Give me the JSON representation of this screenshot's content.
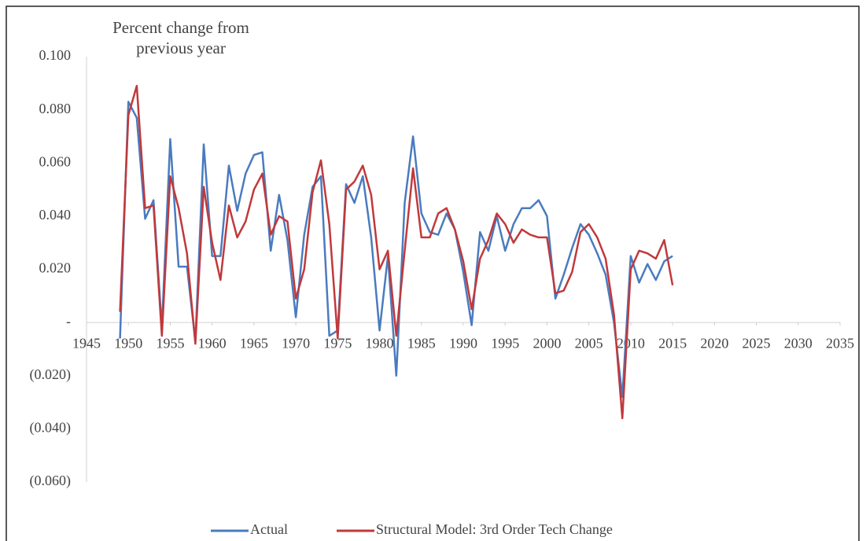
{
  "chart_data": {
    "type": "line",
    "ylabel": "Percent change from previous year",
    "x": [
      1949,
      1950,
      1951,
      1952,
      1953,
      1954,
      1955,
      1956,
      1957,
      1958,
      1959,
      1960,
      1961,
      1962,
      1963,
      1964,
      1965,
      1966,
      1967,
      1968,
      1969,
      1970,
      1971,
      1972,
      1973,
      1974,
      1975,
      1976,
      1977,
      1978,
      1979,
      1980,
      1981,
      1982,
      1983,
      1984,
      1985,
      1986,
      1987,
      1988,
      1989,
      1990,
      1991,
      1992,
      1993,
      1994,
      1995,
      1996,
      1997,
      1998,
      1999,
      2000,
      2001,
      2002,
      2003,
      2004,
      2005,
      2006,
      2007,
      2008,
      2009,
      2010,
      2011,
      2012,
      2013,
      2014,
      2015
    ],
    "series": [
      {
        "name": "Actual",
        "color": "#4a7bbf",
        "values": [
          -0.006,
          0.083,
          0.077,
          0.039,
          0.046,
          -0.002,
          0.069,
          0.021,
          0.021,
          -0.007,
          0.067,
          0.025,
          0.025,
          0.059,
          0.042,
          0.056,
          0.063,
          0.064,
          0.027,
          0.048,
          0.031,
          0.002,
          0.033,
          0.051,
          0.055,
          -0.005,
          -0.003,
          0.052,
          0.045,
          0.055,
          0.032,
          -0.003,
          0.025,
          -0.02,
          0.045,
          0.07,
          0.041,
          0.034,
          0.033,
          0.041,
          0.035,
          0.019,
          -0.001,
          0.034,
          0.027,
          0.04,
          0.027,
          0.037,
          0.043,
          0.043,
          0.046,
          0.04,
          0.009,
          0.018,
          0.028,
          0.037,
          0.033,
          0.026,
          0.018,
          0.0,
          -0.028,
          0.025,
          0.015,
          0.022,
          0.016,
          0.023,
          0.025
        ]
      },
      {
        "name": "Structural Model: 3rd Order Tech Change",
        "color": "#c0393b",
        "values": [
          0.004,
          0.078,
          0.089,
          0.043,
          0.044,
          -0.005,
          0.055,
          0.043,
          0.026,
          -0.008,
          0.051,
          0.03,
          0.016,
          0.044,
          0.032,
          0.038,
          0.05,
          0.056,
          0.033,
          0.04,
          0.038,
          0.009,
          0.02,
          0.049,
          0.061,
          0.037,
          -0.006,
          0.05,
          0.053,
          0.059,
          0.048,
          0.02,
          0.027,
          -0.005,
          0.027,
          0.058,
          0.032,
          0.032,
          0.041,
          0.043,
          0.035,
          0.023,
          0.005,
          0.024,
          0.031,
          0.041,
          0.037,
          0.03,
          0.035,
          0.033,
          0.032,
          0.032,
          0.011,
          0.012,
          0.019,
          0.034,
          0.037,
          0.032,
          0.024,
          0.003,
          -0.036,
          0.02,
          0.027,
          0.026,
          0.024,
          0.031,
          0.014
        ]
      }
    ],
    "xlim": [
      1945,
      2035
    ],
    "xticks": [
      1945,
      1950,
      1955,
      1960,
      1965,
      1970,
      1975,
      1980,
      1985,
      1990,
      1995,
      2000,
      2005,
      2010,
      2015,
      2020,
      2025,
      2030,
      2035
    ],
    "ylim": [
      -0.06,
      0.1
    ],
    "yticks": [
      {
        "value": 0.1,
        "label": "0.100"
      },
      {
        "value": 0.08,
        "label": "0.080"
      },
      {
        "value": 0.06,
        "label": "0.060"
      },
      {
        "value": 0.04,
        "label": "0.040"
      },
      {
        "value": 0.02,
        "label": "0.020"
      },
      {
        "value": 0,
        "label": "-"
      },
      {
        "value": -0.02,
        "label": "(0.020)"
      },
      {
        "value": -0.04,
        "label": "(0.040)"
      },
      {
        "value": -0.06,
        "label": "(0.060)"
      }
    ],
    "grid": false,
    "legend": "bottom"
  }
}
